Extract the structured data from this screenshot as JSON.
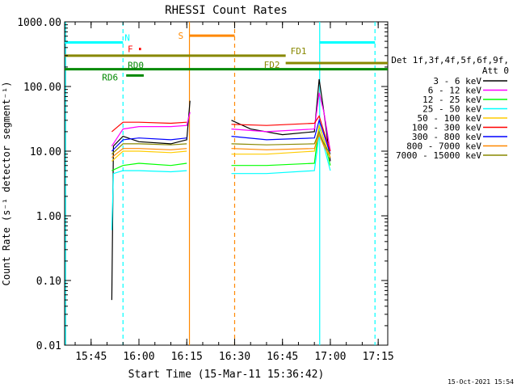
{
  "chart_data": {
    "type": "line",
    "title": "RHESSI Count Rates",
    "xlabel": "Start Time (15-Mar-11 15:36:42)",
    "ylabel": "Count Rate (s⁻¹ detector segment⁻¹)",
    "yscale": "log",
    "ylim": [
      0.01,
      1000
    ],
    "xlim": [
      "15:36:42",
      "17:18:00"
    ],
    "x_ticks": [
      "15:45",
      "16:00",
      "16:15",
      "16:30",
      "16:45",
      "17:00",
      "17:15"
    ],
    "y_ticks": [
      "0.01",
      "0.10",
      "1.00",
      "10.00",
      "100.00",
      "1000.00"
    ],
    "grid": false,
    "timestamp": "15-Oct-2021 15:54",
    "legend": {
      "placement": "right",
      "header1": "Det 1f,3f,4f,5f,6f,9f,",
      "header2": "Att 0",
      "entries": [
        {
          "label": "3 - 6 keV",
          "color": "#000000"
        },
        {
          "label": "6 - 12 keV",
          "color": "#ff00ff"
        },
        {
          "label": "12 - 25 keV",
          "color": "#00ff00"
        },
        {
          "label": "25 - 50 keV",
          "color": "#00ffff"
        },
        {
          "label": "50 - 100 keV",
          "color": "#ffcc00"
        },
        {
          "label": "100 - 300 keV",
          "color": "#ff0000"
        },
        {
          "label": "300 - 800 keV",
          "color": "#0000ff"
        },
        {
          "label": "800 - 7000 keV",
          "color": "#ff8800"
        },
        {
          "label": "7000 - 15000 keV",
          "color": "#888800"
        }
      ]
    },
    "flag_bars": [
      {
        "label": "N",
        "color": "#00ffff",
        "value": 480,
        "start": "15:36:42",
        "end": "15:55:00",
        "start2": "16:56:40",
        "end2": "17:14:00"
      },
      {
        "label": "F",
        "color": "#ff0000",
        "value": 380,
        "start": "16:00:00",
        "end": "16:00:40"
      },
      {
        "label": "S",
        "color": "#ff8800",
        "value": 610,
        "start": "16:15:50",
        "end": "16:30:00"
      },
      {
        "label": "FD1",
        "color": "#888800",
        "value": 300,
        "start": "15:36:42",
        "end": "16:46:00"
      },
      {
        "label": "FD2",
        "color": "#888800",
        "value": 230,
        "start": "16:46:00",
        "end": "17:18:00"
      },
      {
        "label": "RD0",
        "color": "#008800",
        "value": 185,
        "start": "15:36:42",
        "end": "17:18:00"
      },
      {
        "label": "RD6",
        "color": "#008800",
        "value": 148,
        "start": "15:56:00",
        "end": "16:01:30"
      }
    ],
    "vlines": [
      {
        "t": "15:37:00",
        "color": "#00ffff",
        "style": "solid"
      },
      {
        "t": "15:55:00",
        "color": "#00ffff",
        "style": "dashed"
      },
      {
        "t": "16:15:50",
        "color": "#ff8800",
        "style": "solid"
      },
      {
        "t": "16:30:00",
        "color": "#ff8800",
        "style": "dashed"
      },
      {
        "t": "16:56:40",
        "color": "#00ffff",
        "style": "solid"
      },
      {
        "t": "17:14:00",
        "color": "#00ffff",
        "style": "dashed"
      }
    ],
    "segments": [
      {
        "start": "15:51:30",
        "end": "16:16:00"
      },
      {
        "start": "16:29:00",
        "end": "17:00:30"
      }
    ],
    "series": [
      {
        "name": "3 - 6 keV",
        "color": "#000000",
        "values": [
          {
            "t": "15:51:30",
            "v": 0.05
          },
          {
            "t": "15:52:00",
            "v": 12
          },
          {
            "t": "15:55:00",
            "v": 17
          },
          {
            "t": "16:00:00",
            "v": 14
          },
          {
            "t": "16:10:00",
            "v": 13
          },
          {
            "t": "16:15:00",
            "v": 15
          },
          {
            "t": "16:16:00",
            "v": 60
          },
          {
            "t": "16:29:00",
            "v": 30
          },
          {
            "t": "16:35:00",
            "v": 22
          },
          {
            "t": "16:45:00",
            "v": 18
          },
          {
            "t": "16:55:00",
            "v": 20
          },
          {
            "t": "16:56:30",
            "v": 130
          },
          {
            "t": "16:58:00",
            "v": 40
          },
          {
            "t": "17:00:00",
            "v": 7
          }
        ]
      },
      {
        "name": "6 - 12 keV",
        "color": "#ff00ff",
        "values": [
          {
            "t": "15:51:30",
            "v": 12
          },
          {
            "t": "15:55:00",
            "v": 22
          },
          {
            "t": "16:00:00",
            "v": 24
          },
          {
            "t": "16:10:00",
            "v": 24
          },
          {
            "t": "16:15:00",
            "v": 25
          },
          {
            "t": "16:16:00",
            "v": 40
          },
          {
            "t": "16:29:00",
            "v": 22
          },
          {
            "t": "16:40:00",
            "v": 20
          },
          {
            "t": "16:55:00",
            "v": 22
          },
          {
            "t": "16:56:30",
            "v": 80
          },
          {
            "t": "16:58:00",
            "v": 40
          },
          {
            "t": "17:00:00",
            "v": 10
          }
        ]
      },
      {
        "name": "12 - 25 keV",
        "color": "#00ff00",
        "values": [
          {
            "t": "15:51:30",
            "v": 5
          },
          {
            "t": "15:55:00",
            "v": 6
          },
          {
            "t": "16:00:00",
            "v": 6.5
          },
          {
            "t": "16:10:00",
            "v": 6
          },
          {
            "t": "16:15:00",
            "v": 6.5
          },
          {
            "t": "16:29:00",
            "v": 6
          },
          {
            "t": "16:40:00",
            "v": 6
          },
          {
            "t": "16:55:00",
            "v": 6.5
          },
          {
            "t": "16:56:30",
            "v": 25
          },
          {
            "t": "16:58:00",
            "v": 15
          },
          {
            "t": "17:00:00",
            "v": 6
          }
        ]
      },
      {
        "name": "25 - 50 keV",
        "color": "#00ffff",
        "values": [
          {
            "t": "15:51:30",
            "v": 0.6
          },
          {
            "t": "15:52:00",
            "v": 4.5
          },
          {
            "t": "15:55:00",
            "v": 5
          },
          {
            "t": "16:00:00",
            "v": 5
          },
          {
            "t": "16:10:00",
            "v": 4.8
          },
          {
            "t": "16:15:00",
            "v": 5
          },
          {
            "t": "16:29:00",
            "v": 4.5
          },
          {
            "t": "16:40:00",
            "v": 4.5
          },
          {
            "t": "16:55:00",
            "v": 5
          },
          {
            "t": "16:56:30",
            "v": 18
          },
          {
            "t": "16:58:00",
            "v": 12
          },
          {
            "t": "17:00:00",
            "v": 5
          }
        ]
      },
      {
        "name": "50 - 100 keV",
        "color": "#ffcc00",
        "values": [
          {
            "t": "15:51:30",
            "v": 7
          },
          {
            "t": "15:55:00",
            "v": 10
          },
          {
            "t": "16:00:00",
            "v": 10
          },
          {
            "t": "16:10:00",
            "v": 9.5
          },
          {
            "t": "16:15:00",
            "v": 10
          },
          {
            "t": "16:29:00",
            "v": 9
          },
          {
            "t": "16:40:00",
            "v": 9
          },
          {
            "t": "16:55:00",
            "v": 10
          },
          {
            "t": "16:56:30",
            "v": 25
          },
          {
            "t": "16:58:00",
            "v": 15
          },
          {
            "t": "17:00:00",
            "v": 8
          }
        ]
      },
      {
        "name": "100 - 300 keV",
        "color": "#ff0000",
        "values": [
          {
            "t": "15:51:30",
            "v": 20
          },
          {
            "t": "15:55:00",
            "v": 28
          },
          {
            "t": "16:00:00",
            "v": 28
          },
          {
            "t": "16:10:00",
            "v": 27
          },
          {
            "t": "16:15:00",
            "v": 28
          },
          {
            "t": "16:29:00",
            "v": 26
          },
          {
            "t": "16:40:00",
            "v": 25
          },
          {
            "t": "16:55:00",
            "v": 27
          },
          {
            "t": "16:56:30",
            "v": 35
          },
          {
            "t": "16:58:00",
            "v": 20
          },
          {
            "t": "17:00:00",
            "v": 10
          }
        ]
      },
      {
        "name": "300 - 800 keV",
        "color": "#0000ff",
        "values": [
          {
            "t": "15:51:30",
            "v": 10
          },
          {
            "t": "15:55:00",
            "v": 15
          },
          {
            "t": "16:00:00",
            "v": 16
          },
          {
            "t": "16:10:00",
            "v": 15
          },
          {
            "t": "16:15:00",
            "v": 16
          },
          {
            "t": "16:29:00",
            "v": 17
          },
          {
            "t": "16:40:00",
            "v": 15
          },
          {
            "t": "16:55:00",
            "v": 16
          },
          {
            "t": "16:56:30",
            "v": 30
          },
          {
            "t": "16:58:00",
            "v": 18
          },
          {
            "t": "17:00:00",
            "v": 9
          }
        ]
      },
      {
        "name": "800 - 7000 keV",
        "color": "#ff8800",
        "values": [
          {
            "t": "15:51:30",
            "v": 8
          },
          {
            "t": "15:55:00",
            "v": 11
          },
          {
            "t": "16:00:00",
            "v": 11
          },
          {
            "t": "16:10:00",
            "v": 10.5
          },
          {
            "t": "16:15:00",
            "v": 11
          },
          {
            "t": "16:29:00",
            "v": 11
          },
          {
            "t": "16:40:00",
            "v": 10.5
          },
          {
            "t": "16:55:00",
            "v": 11
          },
          {
            "t": "16:56:30",
            "v": 18
          },
          {
            "t": "16:58:00",
            "v": 12
          },
          {
            "t": "17:00:00",
            "v": 8
          }
        ]
      },
      {
        "name": "7000 - 15000 keV",
        "color": "#888800",
        "values": [
          {
            "t": "15:51:30",
            "v": 9
          },
          {
            "t": "15:55:00",
            "v": 13
          },
          {
            "t": "16:00:00",
            "v": 13
          },
          {
            "t": "16:10:00",
            "v": 12.5
          },
          {
            "t": "16:15:00",
            "v": 13
          },
          {
            "t": "16:29:00",
            "v": 13
          },
          {
            "t": "16:40:00",
            "v": 12.5
          },
          {
            "t": "16:55:00",
            "v": 13
          },
          {
            "t": "16:56:30",
            "v": 20
          },
          {
            "t": "16:58:00",
            "v": 13
          },
          {
            "t": "17:00:00",
            "v": 9
          }
        ]
      }
    ]
  }
}
